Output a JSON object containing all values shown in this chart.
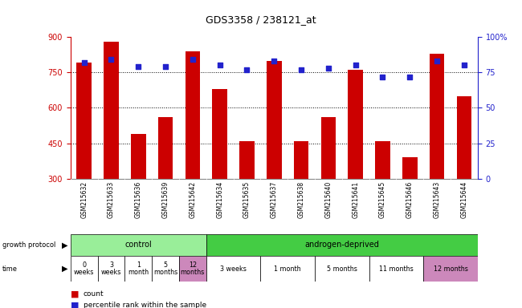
{
  "title": "GDS3358 / 238121_at",
  "samples": [
    "GSM215632",
    "GSM215633",
    "GSM215636",
    "GSM215639",
    "GSM215642",
    "GSM215634",
    "GSM215635",
    "GSM215637",
    "GSM215638",
    "GSM215640",
    "GSM215641",
    "GSM215645",
    "GSM215646",
    "GSM215643",
    "GSM215644"
  ],
  "count_values": [
    790,
    880,
    490,
    560,
    840,
    680,
    460,
    800,
    460,
    560,
    760,
    460,
    390,
    830,
    650
  ],
  "percentile_values": [
    82,
    84,
    79,
    79,
    84,
    80,
    77,
    83,
    77,
    78,
    80,
    72,
    72,
    83,
    80
  ],
  "y_min": 300,
  "y_max": 900,
  "y_ticks": [
    300,
    450,
    600,
    750,
    900
  ],
  "y_right_ticks": [
    0,
    25,
    50,
    75,
    100
  ],
  "bar_color": "#CC0000",
  "dot_color": "#2222CC",
  "grid_color": "#000000",
  "background_color": "#FFFFFF",
  "left_axis_color": "#CC0000",
  "right_axis_color": "#2222CC",
  "sample_bg": "#CCCCCC",
  "control_color": "#99EE99",
  "androgen_color": "#44CC44",
  "time_white": "#FFFFFF",
  "time_pink": "#CC88BB"
}
